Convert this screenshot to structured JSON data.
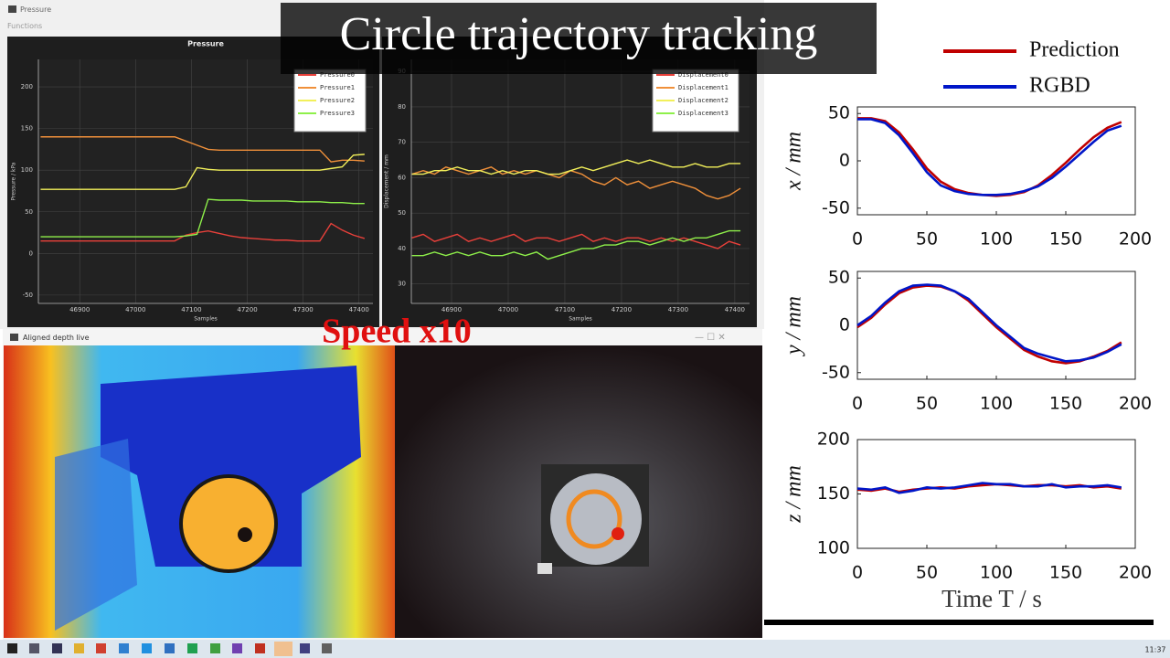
{
  "window": {
    "title": "Pressure",
    "menu": "Functions"
  },
  "overlay_title": "Circle trajectory tracking",
  "speed_label": "Speed x10",
  "depth_window": {
    "title": "Aligned depth live"
  },
  "taskbar": {
    "clock": "11:37"
  },
  "pressure_plot": {
    "type": "line",
    "title": "Pressure",
    "x_label": "Samples",
    "y_label": "Pressure / kPa",
    "xlim": [
      46826,
      47425
    ],
    "xticks": [
      46900,
      47000,
      47100,
      47200,
      47300,
      47400
    ],
    "ylim": [
      -60,
      233
    ],
    "yticks": [
      -50,
      0,
      50,
      100,
      150,
      200
    ],
    "grid": true,
    "x": [
      46830,
      46850,
      46870,
      46890,
      46910,
      46930,
      46950,
      46970,
      46990,
      47010,
      47030,
      47050,
      47070,
      47090,
      47110,
      47130,
      47150,
      47170,
      47190,
      47210,
      47230,
      47250,
      47270,
      47290,
      47310,
      47330,
      47350,
      47370,
      47390,
      47410
    ],
    "series": [
      {
        "name": "Pressure0",
        "color": "#e8403a",
        "values": [
          15,
          15,
          15,
          15,
          15,
          15,
          15,
          15,
          15,
          15,
          15,
          15,
          15,
          22,
          25,
          27,
          24,
          21,
          19,
          18,
          17,
          16,
          16,
          15,
          15,
          15,
          36,
          28,
          22,
          18
        ]
      },
      {
        "name": "Pressure1",
        "color": "#f0903a",
        "values": [
          140,
          140,
          140,
          140,
          140,
          140,
          140,
          140,
          140,
          140,
          140,
          140,
          140,
          135,
          130,
          125,
          124,
          124,
          124,
          124,
          124,
          124,
          124,
          124,
          124,
          124,
          110,
          112,
          112,
          111
        ]
      },
      {
        "name": "Pressure2",
        "color": "#f2f05a",
        "values": [
          77,
          77,
          77,
          77,
          77,
          77,
          77,
          77,
          77,
          77,
          77,
          77,
          77,
          80,
          103,
          101,
          100,
          100,
          100,
          100,
          100,
          100,
          100,
          100,
          100,
          100,
          102,
          104,
          118,
          119
        ]
      },
      {
        "name": "Pressure3",
        "color": "#8ef04a",
        "values": [
          20,
          20,
          20,
          20,
          20,
          20,
          20,
          20,
          20,
          20,
          20,
          20,
          20,
          21,
          23,
          65,
          64,
          64,
          64,
          63,
          63,
          63,
          63,
          62,
          62,
          62,
          61,
          61,
          60,
          60
        ]
      }
    ]
  },
  "displacement_plot": {
    "type": "line",
    "x_label": "Samples",
    "y_label": "Displacement / mm",
    "xlim": [
      46829,
      47426
    ],
    "xticks": [
      46900,
      47000,
      47100,
      47200,
      47300,
      47400
    ],
    "ylim": [
      24.5,
      93.4
    ],
    "yticks": [
      30,
      40,
      50,
      60,
      70,
      80,
      90
    ],
    "grid": true,
    "x": [
      46830,
      46850,
      46870,
      46890,
      46910,
      46930,
      46950,
      46970,
      46990,
      47010,
      47030,
      47050,
      47070,
      47090,
      47110,
      47130,
      47150,
      47170,
      47190,
      47210,
      47230,
      47250,
      47270,
      47290,
      47310,
      47330,
      47350,
      47370,
      47390,
      47410
    ],
    "series": [
      {
        "name": "Displacement0",
        "color": "#e8403a",
        "values": [
          43,
          44,
          42,
          43,
          44,
          42,
          43,
          42,
          43,
          44,
          42,
          43,
          43,
          42,
          43,
          44,
          42,
          43,
          42,
          43,
          43,
          42,
          43,
          42,
          43,
          42,
          41,
          40,
          42,
          41
        ]
      },
      {
        "name": "Displacement1",
        "color": "#f0903a",
        "values": [
          61,
          62,
          61,
          63,
          62,
          61,
          62,
          63,
          61,
          62,
          61,
          62,
          61,
          60,
          62,
          61,
          59,
          58,
          60,
          58,
          59,
          57,
          58,
          59,
          58,
          57,
          55,
          54,
          55,
          57
        ]
      },
      {
        "name": "Displacement2",
        "color": "#f2f05a",
        "values": [
          61,
          61,
          62,
          62,
          63,
          62,
          62,
          61,
          62,
          61,
          62,
          62,
          61,
          61,
          62,
          63,
          62,
          63,
          64,
          65,
          64,
          65,
          64,
          63,
          63,
          64,
          63,
          63,
          64,
          64
        ]
      },
      {
        "name": "Displacement3",
        "color": "#8ef04a",
        "values": [
          38,
          38,
          39,
          38,
          39,
          38,
          39,
          38,
          38,
          39,
          38,
          39,
          37,
          38,
          39,
          40,
          40,
          41,
          41,
          42,
          42,
          41,
          42,
          43,
          42,
          43,
          43,
          44,
          45,
          45
        ]
      }
    ]
  },
  "tracking": {
    "legend": [
      {
        "name": "Prediction",
        "color": "#c00000"
      },
      {
        "name": "RGBD",
        "color": "#0016c8"
      }
    ],
    "x_label": "Time T / s",
    "xlim": [
      0,
      200
    ],
    "xticks": [
      0,
      50,
      100,
      150,
      200
    ],
    "x": [
      0,
      10,
      20,
      30,
      40,
      50,
      60,
      70,
      80,
      90,
      100,
      110,
      120,
      130,
      140,
      150,
      160,
      170,
      180,
      190
    ],
    "plots": [
      {
        "type": "line",
        "y_label": "x / mm",
        "ylim": [
          -57,
          57
        ],
        "yticks": [
          -50,
          0,
          50
        ],
        "series": [
          {
            "values": [
              45,
              45,
              42,
              30,
              12,
              -8,
              -22,
              -30,
              -34,
              -36,
              -37,
              -36,
              -33,
              -26,
              -15,
              -2,
              12,
              25,
              35,
              41
            ]
          },
          {
            "values": [
              44,
              44,
              40,
              27,
              8,
              -12,
              -26,
              -32,
              -35,
              -36,
              -36,
              -35,
              -32,
              -27,
              -18,
              -6,
              7,
              20,
              32,
              37
            ]
          }
        ]
      },
      {
        "type": "line",
        "y_label": "y / mm",
        "ylim": [
          -57,
          57
        ],
        "yticks": [
          -50,
          0,
          50
        ],
        "series": [
          {
            "values": [
              -2,
              8,
              22,
              34,
              40,
              42,
              41,
              36,
              26,
              12,
              -2,
              -14,
              -26,
              -33,
              -38,
              -40,
              -38,
              -33,
              -27,
              -18
            ]
          },
          {
            "values": [
              0,
              10,
              24,
              36,
              42,
              43,
              42,
              36,
              28,
              14,
              0,
              -12,
              -24,
              -30,
              -34,
              -38,
              -37,
              -34,
              -28,
              -20
            ]
          }
        ]
      },
      {
        "type": "line",
        "y_label": "z / mm",
        "ylim": [
          100,
          200
        ],
        "yticks": [
          100,
          150,
          200
        ],
        "series": [
          {
            "values": [
              154,
              153,
              155,
              152,
              154,
              155,
              156,
              155,
              157,
              158,
              159,
              158,
              157,
              158,
              158,
              157,
              158,
              156,
              157,
              155
            ]
          },
          {
            "values": [
              155,
              154,
              156,
              151,
              153,
              156,
              155,
              156,
              158,
              160,
              159,
              159,
              157,
              157,
              159,
              156,
              157,
              157,
              158,
              156
            ]
          }
        ]
      }
    ]
  }
}
